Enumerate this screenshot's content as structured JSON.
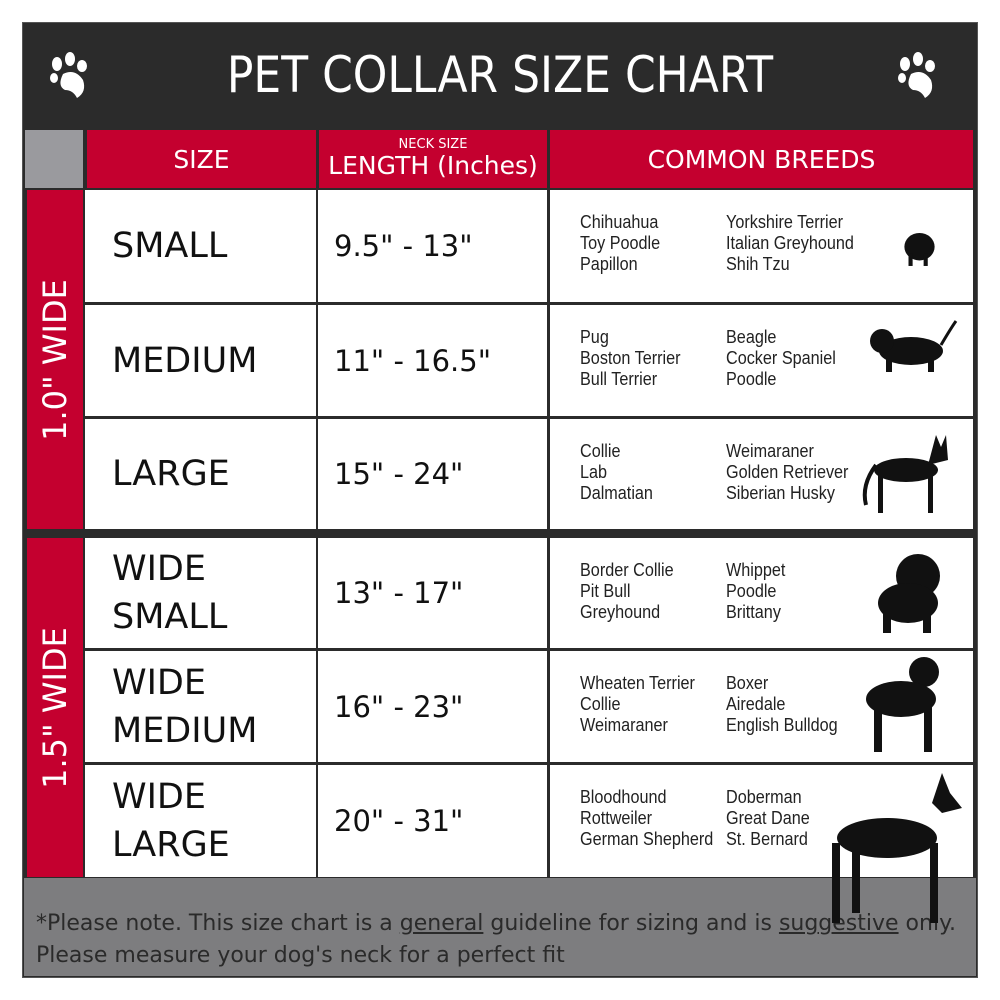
{
  "title": "PET COLLAR SIZE CHART",
  "icons": {
    "corner": "paw-print-icon",
    "breed_image": "dog-silhouette-icon"
  },
  "colors": {
    "header_red": "#c4002f",
    "title_bg": "#2b2b2b",
    "footer_bg": "#7d7d7f"
  },
  "headers": {
    "size": "SIZE",
    "length_small": "NECK SIZE",
    "length": "LENGTH (Inches)",
    "breeds": "COMMON BREEDS"
  },
  "groups": [
    {
      "label": "1.0\" WIDE"
    },
    {
      "label": "1.5\" WIDE"
    }
  ],
  "rows": [
    {
      "size": [
        "SMALL"
      ],
      "length": "9.5\" - 13\"",
      "breeds_a": [
        "Chihuahua",
        "Toy Poodle",
        "Papillon"
      ],
      "breeds_b": [
        "Yorkshire Terrier",
        "Italian Greyhound",
        "Shih Tzu"
      ]
    },
    {
      "size": [
        "MEDIUM"
      ],
      "length": "11\" - 16.5\"",
      "breeds_a": [
        "Pug",
        "Boston Terrier",
        "Bull Terrier"
      ],
      "breeds_b": [
        "Beagle",
        "Cocker Spaniel",
        "Poodle"
      ]
    },
    {
      "size": [
        "LARGE"
      ],
      "length": "15\" - 24\"",
      "breeds_a": [
        "Collie",
        "Lab",
        "Dalmatian"
      ],
      "breeds_b": [
        "Weimaraner",
        "Golden Retriever",
        "Siberian Husky"
      ]
    },
    {
      "size": [
        "WIDE",
        "SMALL"
      ],
      "length": "13\" - 17\"",
      "breeds_a": [
        "Border Collie",
        "Pit Bull",
        "Greyhound"
      ],
      "breeds_b": [
        "Whippet",
        "Poodle",
        "Brittany"
      ]
    },
    {
      "size": [
        "WIDE",
        "MEDIUM"
      ],
      "length": "16\" - 23\"",
      "breeds_a": [
        "Wheaten Terrier",
        "Collie",
        "Weimaraner"
      ],
      "breeds_b": [
        "Boxer",
        "Airedale",
        "English Bulldog"
      ]
    },
    {
      "size": [
        "WIDE",
        "LARGE"
      ],
      "length": "20\" - 31\"",
      "breeds_a": [
        "Bloodhound",
        "Rottweiler",
        "German Shepherd"
      ],
      "breeds_b": [
        "Doberman",
        "Great Dane",
        "St. Bernard"
      ]
    }
  ],
  "footer": {
    "p1": "*Please note. This size chart is a ",
    "u1": "general",
    "p2": " guideline for sizing and is ",
    "u2": "suggestive",
    "p3": " only.",
    "line2": "Please measure your dog's neck for a perfect fit"
  }
}
